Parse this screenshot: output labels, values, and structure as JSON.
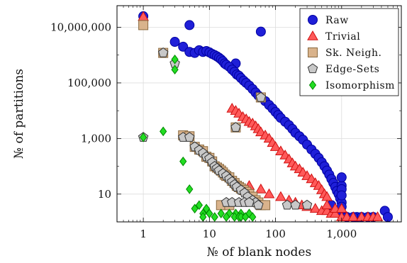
{
  "chart_data": {
    "type": "scatter",
    "xlabel": "№ of blank nodes",
    "ylabel": "№ of partitions",
    "xscale": "log",
    "yscale": "log",
    "xlim": [
      0.4,
      8000
    ],
    "ylim": [
      1,
      60000000
    ],
    "grid": true,
    "legend_position": "top-right",
    "x_ticks": [
      {
        "value": 1,
        "label": "1"
      },
      {
        "value": 10,
        "label": "10"
      },
      {
        "value": 100,
        "label": "100"
      },
      {
        "value": 1000,
        "label": "1,000"
      }
    ],
    "y_ticks": [
      {
        "value": 10,
        "label": "10"
      },
      {
        "value": 1000,
        "label": "1,000"
      },
      {
        "value": 100000,
        "label": "100,000"
      },
      {
        "value": 10000000,
        "label": "10,000,000"
      }
    ],
    "series": [
      {
        "name": "Raw",
        "marker": "circle",
        "color": "#1f1fd8",
        "stroke": "#0000a0",
        "points": [
          [
            1,
            25000000
          ],
          [
            5,
            12000000
          ],
          [
            60,
            7000000
          ],
          [
            3,
            3000000
          ],
          [
            25,
            500000
          ],
          [
            4,
            2000000
          ],
          [
            5,
            1300000
          ],
          [
            6,
            1200000
          ],
          [
            7,
            1500000
          ],
          [
            8,
            1300000
          ],
          [
            9,
            1400000
          ],
          [
            10,
            1250000
          ],
          [
            11,
            1100000
          ],
          [
            12,
            1000000
          ],
          [
            13,
            900000
          ],
          [
            14,
            800000
          ],
          [
            15,
            700000
          ],
          [
            16,
            600000
          ],
          [
            17,
            500000
          ],
          [
            18,
            450000
          ],
          [
            20,
            380000
          ],
          [
            22,
            300000
          ],
          [
            24,
            250000
          ],
          [
            26,
            200000
          ],
          [
            28,
            180000
          ],
          [
            30,
            150000
          ],
          [
            33,
            120000
          ],
          [
            36,
            100000
          ],
          [
            40,
            80000
          ],
          [
            45,
            60000
          ],
          [
            50,
            45000
          ],
          [
            55,
            35000
          ],
          [
            60,
            30000
          ],
          [
            70,
            22000
          ],
          [
            80,
            16000
          ],
          [
            90,
            12000
          ],
          [
            100,
            9000
          ],
          [
            110,
            7000
          ],
          [
            120,
            5500
          ],
          [
            140,
            4000
          ],
          [
            160,
            3000
          ],
          [
            180,
            2200
          ],
          [
            200,
            1600
          ],
          [
            230,
            1200
          ],
          [
            260,
            900
          ],
          [
            300,
            600
          ],
          [
            350,
            400
          ],
          [
            400,
            280
          ],
          [
            450,
            200
          ],
          [
            500,
            140
          ],
          [
            550,
            100
          ],
          [
            600,
            70
          ],
          [
            650,
            50
          ],
          [
            700,
            35
          ],
          [
            750,
            25
          ],
          [
            800,
            18
          ],
          [
            850,
            13
          ],
          [
            900,
            10
          ],
          [
            950,
            7
          ],
          [
            1000,
            5
          ],
          [
            1000,
            20
          ],
          [
            1000,
            40
          ],
          [
            1000,
            15
          ],
          [
            1000,
            9
          ],
          [
            1000,
            3.5
          ],
          [
            1000,
            2
          ],
          [
            700,
            4
          ],
          [
            1700,
            1.5
          ],
          [
            2000,
            1.5
          ],
          [
            2500,
            1.5
          ],
          [
            3000,
            1.5
          ],
          [
            4500,
            2.5
          ],
          [
            5000,
            1.5
          ],
          [
            1200,
            1.5
          ],
          [
            1500,
            1.5
          ]
        ]
      },
      {
        "name": "Trivial",
        "marker": "triangle",
        "color": "#ff5a5a",
        "stroke": "#d01010",
        "points": [
          [
            1,
            24000000
          ],
          [
            22,
            12000
          ],
          [
            25,
            10000
          ],
          [
            28,
            8000
          ],
          [
            32,
            6000
          ],
          [
            36,
            5000
          ],
          [
            40,
            4000
          ],
          [
            45,
            3500
          ],
          [
            50,
            2800
          ],
          [
            55,
            2200
          ],
          [
            60,
            1700
          ],
          [
            70,
            1300
          ],
          [
            80,
            1000
          ],
          [
            90,
            700
          ],
          [
            100,
            500
          ],
          [
            120,
            350
          ],
          [
            140,
            250
          ],
          [
            160,
            180
          ],
          [
            180,
            130
          ],
          [
            200,
            100
          ],
          [
            230,
            80
          ],
          [
            260,
            60
          ],
          [
            300,
            45
          ],
          [
            350,
            35
          ],
          [
            400,
            25
          ],
          [
            450,
            20
          ],
          [
            500,
            14
          ],
          [
            550,
            10
          ],
          [
            600,
            8
          ],
          [
            40,
            20
          ],
          [
            60,
            15
          ],
          [
            80,
            10
          ],
          [
            120,
            8
          ],
          [
            160,
            6
          ],
          [
            200,
            5
          ],
          [
            250,
            4
          ],
          [
            300,
            3.5
          ],
          [
            400,
            3
          ],
          [
            500,
            2.5
          ],
          [
            600,
            2.5
          ],
          [
            700,
            2
          ],
          [
            800,
            2
          ],
          [
            1000,
            1.5
          ],
          [
            1200,
            1.5
          ],
          [
            1500,
            1.5
          ],
          [
            2000,
            1.5
          ],
          [
            2500,
            1.5
          ],
          [
            3000,
            1.5
          ],
          [
            3500,
            1.5
          ],
          [
            600,
            4
          ],
          [
            800,
            3
          ],
          [
            1000,
            3
          ]
        ]
      },
      {
        "name": "Sk. Neigh.",
        "marker": "square",
        "color": "#d9b38c",
        "stroke": "#8a6a40",
        "points": [
          [
            1,
            12000000
          ],
          [
            2,
            1200000
          ],
          [
            60,
            30000
          ],
          [
            25,
            2500
          ],
          [
            4,
            1300
          ],
          [
            5,
            1200
          ],
          [
            6,
            500
          ],
          [
            7,
            400
          ],
          [
            8,
            350
          ],
          [
            9,
            220
          ],
          [
            10,
            200
          ],
          [
            11,
            150
          ],
          [
            12,
            100
          ],
          [
            13,
            90
          ],
          [
            14,
            80
          ],
          [
            15,
            70
          ],
          [
            16,
            60
          ],
          [
            17,
            50
          ],
          [
            18,
            45
          ],
          [
            20,
            40
          ],
          [
            22,
            30
          ],
          [
            24,
            25
          ],
          [
            26,
            20
          ],
          [
            28,
            18
          ],
          [
            30,
            16
          ],
          [
            33,
            14
          ],
          [
            36,
            12
          ],
          [
            40,
            10
          ],
          [
            45,
            8
          ],
          [
            50,
            6
          ],
          [
            55,
            5
          ],
          [
            60,
            4
          ],
          [
            70,
            4
          ],
          [
            15,
            4
          ],
          [
            20,
            4
          ]
        ]
      },
      {
        "name": "Edge-Sets",
        "marker": "pentagon",
        "color": "#c8c8c8",
        "stroke": "#333333",
        "points": [
          [
            1,
            1100
          ],
          [
            2,
            1200000
          ],
          [
            3,
            500000
          ],
          [
            60,
            30000
          ],
          [
            25,
            2500
          ],
          [
            4,
            1100
          ],
          [
            5,
            1100
          ],
          [
            6,
            500
          ],
          [
            7,
            380
          ],
          [
            8,
            300
          ],
          [
            9,
            220
          ],
          [
            10,
            190
          ],
          [
            11,
            140
          ],
          [
            12,
            100
          ],
          [
            13,
            85
          ],
          [
            14,
            70
          ],
          [
            16,
            55
          ],
          [
            18,
            45
          ],
          [
            20,
            35
          ],
          [
            22,
            28
          ],
          [
            24,
            22
          ],
          [
            26,
            18
          ],
          [
            30,
            14
          ],
          [
            34,
            11
          ],
          [
            38,
            8
          ],
          [
            45,
            6
          ],
          [
            50,
            5
          ],
          [
            55,
            4
          ],
          [
            150,
            4
          ],
          [
            200,
            4
          ],
          [
            300,
            4
          ],
          [
            18,
            5
          ],
          [
            22,
            5
          ],
          [
            28,
            5
          ],
          [
            34,
            5
          ],
          [
            40,
            5
          ]
        ]
      },
      {
        "name": "Isomorphism",
        "marker": "diamond",
        "color": "#22dd22",
        "stroke": "#008800",
        "points": [
          [
            1,
            1100
          ],
          [
            2,
            1800
          ],
          [
            3,
            300000
          ],
          [
            3,
            700000
          ],
          [
            4,
            150
          ],
          [
            5,
            15
          ],
          [
            6,
            3
          ],
          [
            7,
            4
          ],
          [
            8,
            2
          ],
          [
            9,
            3
          ],
          [
            10,
            2
          ],
          [
            15,
            2
          ],
          [
            20,
            2
          ],
          [
            25,
            2
          ],
          [
            30,
            2
          ],
          [
            40,
            2
          ],
          [
            8,
            1.5
          ],
          [
            12,
            1.5
          ],
          [
            18,
            1.5
          ],
          [
            24,
            1.5
          ],
          [
            28,
            1.5
          ],
          [
            30,
            1.5
          ],
          [
            35,
            1.5
          ],
          [
            45,
            1.5
          ]
        ]
      }
    ]
  }
}
